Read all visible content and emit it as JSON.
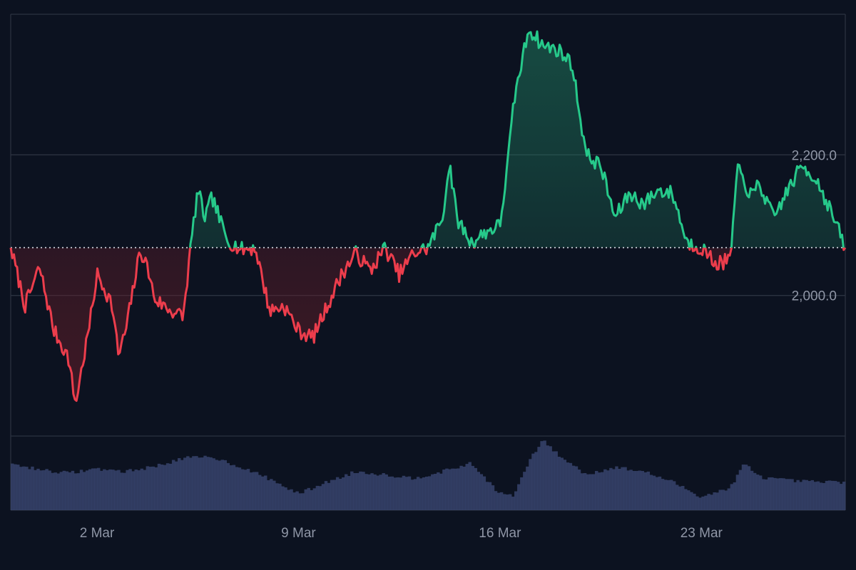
{
  "chart_data": {
    "type": "area",
    "title": "",
    "xlabel": "",
    "ylabel": "",
    "baseline": 2068,
    "ylim": [
      1800,
      2400
    ],
    "yticks": [
      2000,
      2200
    ],
    "ytick_labels": [
      "2,000.0",
      "2,200.0"
    ],
    "xticks": [
      "2 Mar",
      "9 Mar",
      "16 Mar",
      "23 Mar"
    ],
    "xlim": [
      "2025-02-27",
      "2025-03-28"
    ],
    "colors": {
      "up_line": "#26c98a",
      "down_line": "#ec3d4c",
      "up_fill": "#1f7a5e",
      "down_fill": "#6a1f2a",
      "volume": "#3a4670",
      "background": "#0c1220",
      "grid": "#2b3240"
    },
    "series": [
      {
        "values": [
          [
            "2025-02-27",
            2068
          ],
          [
            "2025-02-27T12:00",
            1985
          ],
          [
            "2025-02-28",
            2040
          ],
          [
            "2025-02-28T12:00",
            1950
          ],
          [
            "2025-03-01",
            1912
          ],
          [
            "2025-03-01T06:00",
            1845
          ],
          [
            "2025-03-01T18:00",
            1960
          ],
          [
            "2025-03-02",
            2030
          ],
          [
            "2025-03-02T12:00",
            1990
          ],
          [
            "2025-03-02T18:00",
            1915
          ],
          [
            "2025-03-03",
            1950
          ],
          [
            "2025-03-03T12:00",
            2065
          ],
          [
            "2025-03-03T18:00",
            2040
          ],
          [
            "2025-03-04",
            1995
          ],
          [
            "2025-03-04T12:00",
            1980
          ],
          [
            "2025-03-05",
            1970
          ],
          [
            "2025-03-05T06:00",
            2068
          ],
          [
            "2025-03-05T12:00",
            2150
          ],
          [
            "2025-03-05T18:00",
            2110
          ],
          [
            "2025-03-06",
            2140
          ],
          [
            "2025-03-06T12:00",
            2080
          ],
          [
            "2025-03-07",
            2065
          ],
          [
            "2025-03-07T12:00",
            2068
          ],
          [
            "2025-03-08",
            1978
          ],
          [
            "2025-03-08T12:00",
            1985
          ],
          [
            "2025-03-09",
            1950
          ],
          [
            "2025-03-09T12:00",
            1940
          ],
          [
            "2025-03-10",
            1985
          ],
          [
            "2025-03-10T12:00",
            2030
          ],
          [
            "2025-03-11",
            2060
          ],
          [
            "2025-03-11T12:00",
            2035
          ],
          [
            "2025-03-12",
            2068
          ],
          [
            "2025-03-12T12:00",
            2030
          ],
          [
            "2025-03-13",
            2060
          ],
          [
            "2025-03-13T12:00",
            2068
          ],
          [
            "2025-03-14",
            2110
          ],
          [
            "2025-03-14T06:00",
            2190
          ],
          [
            "2025-03-14T12:00",
            2110
          ],
          [
            "2025-03-15",
            2075
          ],
          [
            "2025-03-15T12:00",
            2090
          ],
          [
            "2025-03-16",
            2100
          ],
          [
            "2025-03-16T06:00",
            2180
          ],
          [
            "2025-03-16T12:00",
            2280
          ],
          [
            "2025-03-16T18:00",
            2330
          ],
          [
            "2025-03-17",
            2380
          ],
          [
            "2025-03-17T12:00",
            2355
          ],
          [
            "2025-03-18",
            2350
          ],
          [
            "2025-03-18T12:00",
            2330
          ],
          [
            "2025-03-19",
            2200
          ],
          [
            "2025-03-19T12:00",
            2185
          ],
          [
            "2025-03-20",
            2110
          ],
          [
            "2025-03-20T12:00",
            2145
          ],
          [
            "2025-03-21",
            2130
          ],
          [
            "2025-03-21T12:00",
            2150
          ],
          [
            "2025-03-22",
            2145
          ],
          [
            "2025-03-22T12:00",
            2075
          ],
          [
            "2025-03-23",
            2068
          ],
          [
            "2025-03-23T12:00",
            2045
          ],
          [
            "2025-03-24",
            2050
          ],
          [
            "2025-03-24T06:00",
            2180
          ],
          [
            "2025-03-24T18:00",
            2140
          ],
          [
            "2025-03-25",
            2160
          ],
          [
            "2025-03-25T12:00",
            2110
          ],
          [
            "2025-03-26",
            2150
          ],
          [
            "2025-03-26T12:00",
            2185
          ],
          [
            "2025-03-27",
            2165
          ],
          [
            "2025-03-27T12:00",
            2120
          ],
          [
            "2025-03-28",
            2068
          ]
        ]
      }
    ],
    "volume": [
      [
        "2025-02-27",
        0.62
      ],
      [
        "2025-02-28",
        0.55
      ],
      [
        "2025-03-01",
        0.5
      ],
      [
        "2025-03-02",
        0.56
      ],
      [
        "2025-03-03",
        0.52
      ],
      [
        "2025-03-04",
        0.59
      ],
      [
        "2025-03-05",
        0.7
      ],
      [
        "2025-03-06",
        0.72
      ],
      [
        "2025-03-07",
        0.58
      ],
      [
        "2025-03-08",
        0.42
      ],
      [
        "2025-03-09",
        0.22
      ],
      [
        "2025-03-10",
        0.38
      ],
      [
        "2025-03-11",
        0.52
      ],
      [
        "2025-03-12",
        0.48
      ],
      [
        "2025-03-13",
        0.43
      ],
      [
        "2025-03-14",
        0.52
      ],
      [
        "2025-03-15",
        0.63
      ],
      [
        "2025-03-16",
        0.22
      ],
      [
        "2025-03-16T12:00",
        0.2
      ],
      [
        "2025-03-17",
        0.65
      ],
      [
        "2025-03-17T12:00",
        0.95
      ],
      [
        "2025-03-18",
        0.75
      ],
      [
        "2025-03-19",
        0.48
      ],
      [
        "2025-03-20",
        0.58
      ],
      [
        "2025-03-21",
        0.52
      ],
      [
        "2025-03-22",
        0.38
      ],
      [
        "2025-03-23",
        0.18
      ],
      [
        "2025-03-24",
        0.3
      ],
      [
        "2025-03-24T12:00",
        0.63
      ],
      [
        "2025-03-25",
        0.45
      ],
      [
        "2025-03-26",
        0.4
      ],
      [
        "2025-03-27",
        0.38
      ],
      [
        "2025-03-28",
        0.38
      ]
    ]
  }
}
